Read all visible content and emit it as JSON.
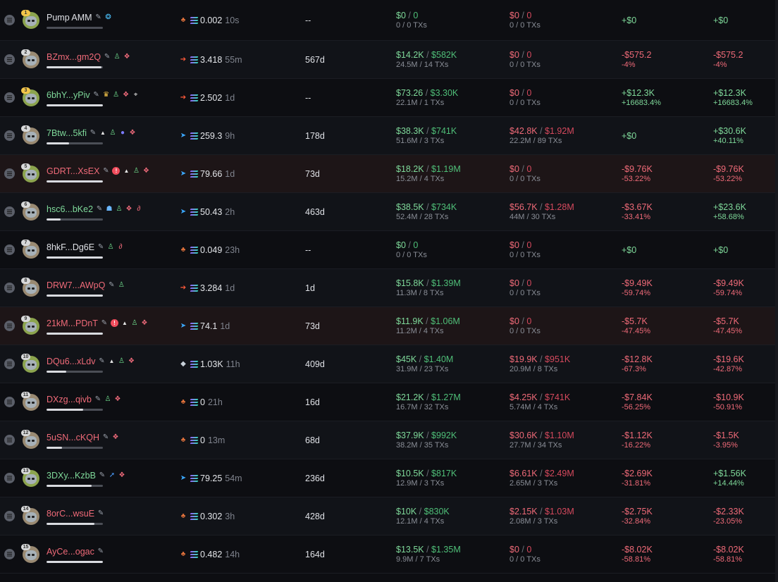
{
  "colors": {
    "positive": "#7fd99a",
    "negative": "#ef6a78",
    "bg": "#0d0e12",
    "row_flag": "#1d1517"
  },
  "rows": [
    {
      "rank": "1",
      "rank_style": "gold",
      "avatar": "green",
      "name": "Pump AMM",
      "name_color": "white",
      "icons": [
        "pencil-icon",
        "droplet-icon"
      ],
      "bar": 0.0,
      "species": "crab-icon",
      "balance": "0.002",
      "age": "10s",
      "held": "--",
      "bought_usd": "$0",
      "bought_alt": "0",
      "bought_sub": "0 / 0 TXs",
      "sold_usd": "$0",
      "sold_alt": "0",
      "sold_sub": "0 / 0 TXs",
      "upnl": "+$0",
      "upnl_pct": "",
      "pnl": "+$0",
      "pnl_pct": "",
      "flag": false
    },
    {
      "rank": "2",
      "rank_style": "",
      "avatar": "tan",
      "name": "BZmx...gm2Q",
      "name_color": "red",
      "icons": [
        "pencil-icon",
        "user-check-icon",
        "layers-icon"
      ],
      "bar": 0.98,
      "species": "shrimp-icon",
      "balance": "3.418",
      "age": "55m",
      "held": "567d",
      "bought_usd": "$14.2K",
      "bought_alt": "$582K",
      "bought_sub": "24.5M / 14 TXs",
      "sold_usd": "$0",
      "sold_alt": "0",
      "sold_sub": "0 / 0 TXs",
      "upnl": "-$575.2",
      "upnl_pct": "-4%",
      "pnl": "-$575.2",
      "pnl_pct": "-4%",
      "flag": false
    },
    {
      "rank": "3",
      "rank_style": "gold",
      "avatar": "green",
      "name": "6bhY...yPiv",
      "name_color": "green",
      "icons": [
        "pencil-icon",
        "bell-icon",
        "user-check-icon",
        "layers-icon",
        "target-icon"
      ],
      "bar": 1.0,
      "species": "shrimp-icon",
      "balance": "2.502",
      "age": "1d",
      "held": "--",
      "bought_usd": "$73.26",
      "bought_alt": "$3.30K",
      "bought_sub": "22.1M / 1 TXs",
      "sold_usd": "$0",
      "sold_alt": "0",
      "sold_sub": "0 / 0 TXs",
      "upnl": "+$12.3K",
      "upnl_pct": "+16683.4%",
      "pnl": "+$12.3K",
      "pnl_pct": "+16683.4%",
      "flag": false
    },
    {
      "rank": "4",
      "rank_style": "",
      "avatar": "tan",
      "name": "7Btw...5kfi",
      "name_color": "green",
      "icons": [
        "pencil-icon",
        "triangle-icon",
        "user-check-icon",
        "moon-icon",
        "layers-icon"
      ],
      "bar": 0.4,
      "species": "dolphin-icon",
      "balance": "259.3",
      "age": "9h",
      "held": "178d",
      "bought_usd": "$38.3K",
      "bought_alt": "$741K",
      "bought_sub": "51.6M / 3 TXs",
      "sold_usd": "$42.8K",
      "sold_alt": "$1.92M",
      "sold_sub": "22.2M / 89 TXs",
      "upnl": "+$0",
      "upnl_pct": "",
      "pnl": "+$30.6K",
      "pnl_pct": "+40.11%",
      "flag": false
    },
    {
      "rank": "5",
      "rank_style": "",
      "avatar": "green",
      "name": "GDRT...XsEX",
      "name_color": "red",
      "icons": [
        "pencil-icon",
        "alert-icon",
        "triangle-icon",
        "user-check-icon",
        "layers-icon"
      ],
      "bar": 1.0,
      "species": "dolphin-icon",
      "balance": "79.66",
      "age": "1d",
      "held": "73d",
      "bought_usd": "$18.2K",
      "bought_alt": "$1.19M",
      "bought_sub": "15.2M / 4 TXs",
      "sold_usd": "$0",
      "sold_alt": "0",
      "sold_sub": "0 / 0 TXs",
      "upnl": "-$9.76K",
      "upnl_pct": "-53.22%",
      "pnl": "-$9.76K",
      "pnl_pct": "-53.22%",
      "flag": true
    },
    {
      "rank": "6",
      "rank_style": "",
      "avatar": "tan",
      "name": "hsc6...bKe2",
      "name_color": "green",
      "icons": [
        "pencil-icon",
        "ghost-icon",
        "user-check-icon",
        "layers-icon",
        "link-icon"
      ],
      "bar": 0.25,
      "species": "dolphin-icon",
      "balance": "50.43",
      "age": "2h",
      "held": "463d",
      "bought_usd": "$38.5K",
      "bought_alt": "$734K",
      "bought_sub": "52.4M / 28 TXs",
      "sold_usd": "$56.7K",
      "sold_alt": "$1.28M",
      "sold_sub": "44M / 30 TXs",
      "upnl": "-$3.67K",
      "upnl_pct": "-33.41%",
      "pnl": "+$23.6K",
      "pnl_pct": "+58.68%",
      "flag": false
    },
    {
      "rank": "7",
      "rank_style": "",
      "avatar": "tan",
      "name": "8hkF...Dg6E",
      "name_color": "white",
      "icons": [
        "pencil-icon",
        "user-check-icon",
        "link-icon"
      ],
      "bar": 1.0,
      "species": "crab-icon",
      "balance": "0.049",
      "age": "23h",
      "held": "--",
      "bought_usd": "$0",
      "bought_alt": "0",
      "bought_sub": "0 / 0 TXs",
      "sold_usd": "$0",
      "sold_alt": "0",
      "sold_sub": "0 / 0 TXs",
      "upnl": "+$0",
      "upnl_pct": "",
      "pnl": "+$0",
      "pnl_pct": "",
      "flag": false
    },
    {
      "rank": "8",
      "rank_style": "",
      "avatar": "tan",
      "name": "DRW7...AWpQ",
      "name_color": "red",
      "icons": [
        "pencil-icon",
        "user-check-icon"
      ],
      "bar": 1.0,
      "species": "shrimp-icon",
      "balance": "3.284",
      "age": "1d",
      "held": "1d",
      "bought_usd": "$15.8K",
      "bought_alt": "$1.39M",
      "bought_sub": "11.3M / 8 TXs",
      "sold_usd": "$0",
      "sold_alt": "0",
      "sold_sub": "0 / 0 TXs",
      "upnl": "-$9.49K",
      "upnl_pct": "-59.74%",
      "pnl": "-$9.49K",
      "pnl_pct": "-59.74%",
      "flag": false
    },
    {
      "rank": "9",
      "rank_style": "",
      "avatar": "green",
      "name": "21kM...PDnT",
      "name_color": "red",
      "icons": [
        "pencil-icon",
        "alert-icon",
        "triangle-icon",
        "user-check-icon",
        "layers-icon"
      ],
      "bar": 1.0,
      "species": "dolphin-icon",
      "balance": "74.1",
      "age": "1d",
      "held": "73d",
      "bought_usd": "$11.9K",
      "bought_alt": "$1.06M",
      "bought_sub": "11.2M / 4 TXs",
      "sold_usd": "$0",
      "sold_alt": "0",
      "sold_sub": "0 / 0 TXs",
      "upnl": "-$5.7K",
      "upnl_pct": "-47.45%",
      "pnl": "-$5.7K",
      "pnl_pct": "-47.45%",
      "flag": true
    },
    {
      "rank": "10",
      "rank_style": "",
      "avatar": "green",
      "name": "DQu6...xLdv",
      "name_color": "red",
      "icons": [
        "pencil-icon",
        "triangle-icon",
        "user-check-icon",
        "layers-icon"
      ],
      "bar": 0.35,
      "species": "whale-icon",
      "balance": "1.03K",
      "age": "11h",
      "held": "409d",
      "bought_usd": "$45K",
      "bought_alt": "$1.40M",
      "bought_sub": "31.9M / 23 TXs",
      "sold_usd": "$19.9K",
      "sold_alt": "$951K",
      "sold_sub": "20.9M / 8 TXs",
      "upnl": "-$12.8K",
      "upnl_pct": "-67.3%",
      "pnl": "-$19.6K",
      "pnl_pct": "-42.87%",
      "flag": false
    },
    {
      "rank": "11",
      "rank_style": "",
      "avatar": "tan",
      "name": "DXzg...qivb",
      "name_color": "red",
      "icons": [
        "pencil-icon",
        "user-check-icon",
        "layers-icon"
      ],
      "bar": 0.65,
      "species": "crab-icon",
      "balance": "0",
      "age": "21h",
      "held": "16d",
      "bought_usd": "$21.2K",
      "bought_alt": "$1.27M",
      "bought_sub": "16.7M / 32 TXs",
      "sold_usd": "$4.25K",
      "sold_alt": "$741K",
      "sold_sub": "5.74M / 4 TXs",
      "upnl": "-$7.84K",
      "upnl_pct": "-56.25%",
      "pnl": "-$10.9K",
      "pnl_pct": "-50.91%",
      "flag": false
    },
    {
      "rank": "12",
      "rank_style": "",
      "avatar": "tan",
      "name": "5uSN...cKQH",
      "name_color": "red",
      "icons": [
        "pencil-icon",
        "layers-icon"
      ],
      "bar": 0.28,
      "species": "crab-icon",
      "balance": "0",
      "age": "13m",
      "held": "68d",
      "bought_usd": "$37.9K",
      "bought_alt": "$992K",
      "bought_sub": "38.2M / 35 TXs",
      "sold_usd": "$30.6K",
      "sold_alt": "$1.10M",
      "sold_sub": "27.7M / 34 TXs",
      "upnl": "-$1.12K",
      "upnl_pct": "-16.22%",
      "pnl": "-$1.5K",
      "pnl_pct": "-3.95%",
      "flag": false
    },
    {
      "rank": "13",
      "rank_style": "",
      "avatar": "green",
      "name": "3DXy...KzbB",
      "name_color": "green",
      "icons": [
        "pencil-icon",
        "fish-icon",
        "layers-icon"
      ],
      "bar": 0.8,
      "species": "dolphin-icon",
      "balance": "79.25",
      "age": "54m",
      "held": "236d",
      "bought_usd": "$10.5K",
      "bought_alt": "$817K",
      "bought_sub": "12.9M / 3 TXs",
      "sold_usd": "$6.61K",
      "sold_alt": "$2.49M",
      "sold_sub": "2.65M / 3 TXs",
      "upnl": "-$2.69K",
      "upnl_pct": "-31.81%",
      "pnl": "+$1.56K",
      "pnl_pct": "+14.44%",
      "flag": false
    },
    {
      "rank": "14",
      "rank_style": "",
      "avatar": "tan",
      "name": "8orC...wsuE",
      "name_color": "red",
      "icons": [
        "pencil-icon"
      ],
      "bar": 0.85,
      "species": "crab-icon",
      "balance": "0.302",
      "age": "3h",
      "held": "428d",
      "bought_usd": "$10K",
      "bought_alt": "$830K",
      "bought_sub": "12.1M / 4 TXs",
      "sold_usd": "$2.15K",
      "sold_alt": "$1.03M",
      "sold_sub": "2.08M / 3 TXs",
      "upnl": "-$2.75K",
      "upnl_pct": "-32.84%",
      "pnl": "-$2.33K",
      "pnl_pct": "-23.05%",
      "flag": false
    },
    {
      "rank": "15",
      "rank_style": "",
      "avatar": "tan",
      "name": "AyCe...ogac",
      "name_color": "red",
      "icons": [
        "pencil-icon"
      ],
      "bar": 1.0,
      "species": "crab-icon",
      "balance": "0.482",
      "age": "14h",
      "held": "164d",
      "bought_usd": "$13.5K",
      "bought_alt": "$1.35M",
      "bought_sub": "9.9M / 7 TXs",
      "sold_usd": "$0",
      "sold_alt": "0",
      "sold_sub": "0 / 0 TXs",
      "upnl": "-$8.02K",
      "upnl_pct": "-58.81%",
      "pnl": "-$8.02K",
      "pnl_pct": "-58.81%",
      "flag": false
    }
  ]
}
